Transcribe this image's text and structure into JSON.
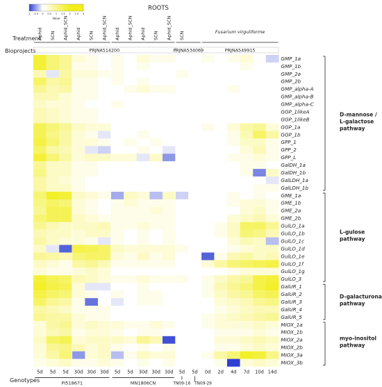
{
  "chart_data": {
    "type": "heatmap",
    "title": "ROOTS",
    "colorbar": {
      "label": "Value",
      "ticks": [
        "-1",
        "-0.5",
        "0",
        "0.5",
        "1",
        "1.5",
        "2",
        "2.5",
        "3"
      ],
      "min": -1,
      "max": 3,
      "low_color": "#2e3fd1",
      "mid_color": "#ffffff",
      "high_color": "#f2ee1a"
    },
    "row_header": {
      "treatment": "Treatment",
      "bioprojects": "Bioprojects",
      "genotypes": "Genotypes"
    },
    "treatments": [
      "Aphid",
      "SCN",
      "Aphid_SCN",
      "Aphid",
      "SCN",
      "Aphid_SCN",
      "Aphid",
      "Aphid_SCN",
      "Aphid",
      "SCN",
      "Aphid_SCN",
      "SCN",
      "Fusarium virguliforme"
    ],
    "bioprojects": [
      "PRJNA514200",
      "PRJNA534069",
      "PRJNA549915"
    ],
    "timepoints": [
      "5d",
      "5d",
      "5d",
      "30d",
      "30d",
      "30d",
      "5d",
      "5d",
      "30d",
      "30d",
      "30d",
      "5d",
      "5d",
      "0d",
      "2d",
      "4d",
      "7d",
      "10d",
      "14d"
    ],
    "genotypes": [
      "PI518671",
      "MN1806CN",
      "TN09-16",
      "TN09-29"
    ],
    "rows": [
      "GMP_1a",
      "GMP_1b",
      "GMP_2a",
      "GMP_2b",
      "GMP_alpha-A",
      "GMP_alpha-B",
      "GMP_alpha-C",
      "GGP_1likeA",
      "GGP_1likeB",
      "GGP_1a",
      "GGP_1b",
      "GPP_1",
      "GPP_2",
      "GPP_L",
      "GalDH_1a",
      "GalDH_1b",
      "GalLDH_1a",
      "GalLDH_1b",
      "GME_1a",
      "GME_1b",
      "GME_2a",
      "GME_2b",
      "GulLO_1a",
      "GulLO_1b",
      "GulLO_1c",
      "GulLO_1d",
      "GulLO_1e",
      "GulLO_1f",
      "GulLO_1g",
      "GulLO_3",
      "GalUR_1",
      "GalUR_2",
      "GalUR_3",
      "GalUR_4",
      "GalUR_5",
      "MIOX_1a",
      "MIOX_1b",
      "MIOX_2a",
      "MIOX_2b",
      "MIOX_3a",
      "MIOX_3b"
    ],
    "pathways": [
      "D-mannose /\nL-galactose\npathway",
      "L-gulose\npathway",
      "D-galacturonate\npathway",
      "myo-inositol\npathway"
    ],
    "values": [
      [
        1.2,
        0.8,
        0.6,
        0.2,
        0.1,
        0.0,
        0.1,
        0.0,
        0.2,
        0.1,
        0.1,
        0.0,
        0.0,
        0.1,
        0.0,
        0.1,
        0.2,
        0.0,
        -0.2
      ],
      [
        1.2,
        0.8,
        0.6,
        0.1,
        0.1,
        0.0,
        0.1,
        0.0,
        0.1,
        0.0,
        0.0,
        0.0,
        0.0,
        0.0,
        0.0,
        0.0,
        0.1,
        0.0,
        0.0
      ],
      [
        0.4,
        -0.1,
        0.5,
        0.2,
        0.2,
        0.1,
        0.1,
        0.0,
        0.0,
        0.0,
        0.0,
        0.1,
        0.0,
        0.0,
        0.0,
        0.0,
        0.0,
        0.0,
        0.0
      ],
      [
        0.9,
        0.5,
        0.6,
        0.1,
        0.1,
        0.0,
        0.1,
        0.0,
        0.1,
        0.0,
        0.0,
        0.0,
        0.0,
        0.0,
        0.0,
        0.0,
        0.0,
        0.0,
        0.0
      ],
      [
        0.6,
        0.4,
        0.5,
        0.1,
        0.1,
        0.0,
        0.0,
        0.1,
        0.2,
        0.1,
        0.1,
        0.0,
        0.0,
        0.0,
        0.0,
        0.1,
        0.0,
        0.0,
        0.0
      ],
      [
        0.4,
        0.4,
        0.2,
        0.1,
        0.1,
        0.0,
        0.0,
        0.0,
        0.0,
        0.0,
        0.0,
        0.0,
        0.0,
        0.0,
        0.0,
        0.0,
        0.0,
        0.0,
        0.0
      ],
      [
        0.3,
        0.2,
        0.2,
        0.1,
        0.0,
        0.0,
        0.1,
        0.0,
        0.0,
        0.0,
        0.0,
        0.0,
        0.0,
        0.0,
        0.0,
        0.0,
        0.0,
        0.0,
        0.0
      ],
      [
        0.4,
        0.3,
        0.2,
        0.1,
        0.1,
        0.0,
        0.0,
        0.0,
        0.0,
        0.0,
        0.0,
        0.0,
        0.0,
        0.0,
        0.0,
        0.0,
        0.0,
        0.0,
        0.0
      ],
      [
        0.4,
        0.3,
        0.2,
        0.1,
        0.1,
        0.0,
        0.0,
        0.0,
        0.0,
        0.0,
        0.0,
        0.0,
        0.0,
        0.0,
        0.0,
        0.0,
        0.0,
        0.0,
        0.0
      ],
      [
        1.0,
        0.8,
        0.6,
        0.3,
        0.2,
        0.2,
        0.0,
        0.0,
        0.0,
        0.0,
        0.0,
        0.0,
        0.0,
        0.1,
        0.0,
        0.2,
        0.5,
        0.6,
        0.2
      ],
      [
        1.0,
        0.7,
        0.5,
        0.2,
        0.1,
        -0.1,
        0.0,
        0.0,
        0.1,
        0.0,
        0.0,
        0.0,
        0.0,
        0.0,
        0.0,
        0.1,
        0.4,
        0.9,
        0.5
      ],
      [
        1.1,
        0.8,
        0.5,
        0.2,
        0.2,
        0.1,
        0.0,
        0.1,
        0.0,
        0.1,
        0.0,
        0.0,
        0.0,
        0.0,
        0.0,
        0.1,
        0.3,
        0.3,
        0.1
      ],
      [
        0.9,
        0.5,
        0.4,
        0.2,
        -0.1,
        -0.2,
        0.0,
        0.0,
        0.1,
        0.0,
        -0.1,
        0.0,
        0.0,
        0.0,
        0.0,
        0.0,
        0.2,
        0.4,
        0.1
      ],
      [
        1.2,
        0.8,
        0.5,
        0.2,
        0.3,
        0.3,
        0.2,
        0.2,
        -0.1,
        0.3,
        -0.5,
        0.0,
        0.0,
        0.0,
        0.0,
        0.1,
        0.1,
        0.2,
        0.1
      ],
      [
        0.6,
        0.3,
        0.3,
        0.1,
        0.1,
        0.0,
        0.0,
        0.0,
        0.0,
        0.0,
        0.0,
        0.0,
        0.0,
        0.0,
        0.0,
        0.0,
        0.1,
        0.1,
        0.0
      ],
      [
        0.7,
        0.3,
        0.3,
        0.1,
        0.1,
        0.0,
        0.0,
        0.0,
        0.0,
        0.0,
        0.0,
        0.0,
        0.0,
        0.0,
        0.0,
        0.0,
        0.1,
        -0.6,
        0.3
      ],
      [
        0.5,
        0.3,
        0.2,
        0.1,
        0.0,
        0.0,
        0.0,
        0.0,
        0.0,
        0.0,
        0.0,
        0.0,
        0.0,
        0.0,
        0.0,
        0.0,
        0.0,
        0.0,
        -0.1
      ],
      [
        0.5,
        0.3,
        0.3,
        0.1,
        0.0,
        0.0,
        0.0,
        0.0,
        0.0,
        0.0,
        0.0,
        0.0,
        0.0,
        0.0,
        0.0,
        0.0,
        0.0,
        0.1,
        0.1
      ],
      [
        0.8,
        1.3,
        1.2,
        0.3,
        0.2,
        0.1,
        -0.4,
        0.3,
        0.2,
        -0.3,
        0.3,
        -0.2,
        0.0,
        0.0,
        0.0,
        0.1,
        0.0,
        0.1,
        0.0
      ],
      [
        0.7,
        0.9,
        0.8,
        0.2,
        0.1,
        0.0,
        0.1,
        0.2,
        0.1,
        0.1,
        0.1,
        0.0,
        0.0,
        0.0,
        0.0,
        0.1,
        0.2,
        0.2,
        0.1
      ],
      [
        0.6,
        1.0,
        1.0,
        0.2,
        0.1,
        0.0,
        0.1,
        0.1,
        0.1,
        0.2,
        0.1,
        0.0,
        0.0,
        0.0,
        0.0,
        0.0,
        0.2,
        0.3,
        0.1
      ],
      [
        0.8,
        1.0,
        1.0,
        0.3,
        0.2,
        0.1,
        0.1,
        0.1,
        0.1,
        0.1,
        0.1,
        0.0,
        0.0,
        0.0,
        0.0,
        0.2,
        0.3,
        0.4,
        0.2
      ],
      [
        0.6,
        0.4,
        0.3,
        0.3,
        0.3,
        0.4,
        0.1,
        0.1,
        0.2,
        0.1,
        0.1,
        0.0,
        0.0,
        0.0,
        0.1,
        0.3,
        0.9,
        0.9,
        0.6
      ],
      [
        0.4,
        0.3,
        0.3,
        0.2,
        0.3,
        0.3,
        0.1,
        0.0,
        0.1,
        0.0,
        0.1,
        0.0,
        0.0,
        0.0,
        0.1,
        0.3,
        0.8,
        0.7,
        0.4
      ],
      [
        0.5,
        0.3,
        0.2,
        0.2,
        0.1,
        -0.1,
        0.1,
        0.0,
        0.1,
        0.0,
        0.1,
        0.0,
        0.0,
        0.0,
        0.0,
        0.2,
        0.4,
        0.3,
        -0.3
      ],
      [
        0.3,
        -0.1,
        -0.8,
        1.1,
        1.0,
        0.9,
        0.3,
        0.2,
        0.2,
        0.2,
        0.2,
        0.1,
        0.0,
        0.0,
        0.0,
        0.1,
        0.2,
        0.3,
        0.3
      ],
      [
        0.6,
        0.5,
        0.4,
        0.8,
        0.9,
        0.9,
        0.2,
        0.1,
        0.3,
        0.1,
        0.2,
        0.0,
        0.0,
        -0.8,
        0.1,
        0.4,
        0.5,
        0.3,
        0.4
      ],
      [
        0.3,
        0.2,
        0.1,
        0.5,
        0.6,
        0.4,
        0.1,
        0.1,
        0.1,
        0.1,
        0.1,
        0.0,
        0.0,
        0.2,
        0.5,
        0.8,
        0.9,
        1.0,
        1.1
      ],
      [
        0.2,
        0.1,
        0.1,
        0.2,
        0.3,
        0.2,
        0.0,
        0.0,
        0.0,
        0.0,
        0.0,
        0.0,
        0.0,
        0.0,
        0.0,
        0.1,
        0.2,
        0.2,
        0.2
      ],
      [
        1.2,
        1.0,
        0.9,
        0.4,
        0.3,
        0.2,
        0.1,
        0.1,
        0.2,
        0.1,
        0.1,
        0.1,
        0.0,
        0.1,
        0.3,
        0.5,
        0.6,
        1.1,
        1.2
      ],
      [
        1.3,
        1.1,
        1.0,
        0.2,
        -0.1,
        -0.1,
        0.0,
        0.0,
        0.1,
        0.0,
        0.0,
        0.0,
        0.0,
        0.1,
        0.4,
        0.6,
        0.8,
        1.1,
        1.3
      ],
      [
        1.1,
        0.9,
        0.8,
        0.2,
        0.1,
        0.0,
        0.1,
        0.0,
        0.1,
        0.1,
        0.0,
        0.0,
        0.0,
        0.1,
        0.3,
        0.5,
        0.6,
        0.9,
        1.0
      ],
      [
        0.9,
        0.6,
        0.5,
        0.1,
        -0.7,
        0.0,
        -0.1,
        0.0,
        0.1,
        0.1,
        0.0,
        0.0,
        0.0,
        0.0,
        0.2,
        0.3,
        0.4,
        0.6,
        0.7
      ],
      [
        0.5,
        0.4,
        0.3,
        0.1,
        0.1,
        0.1,
        0.0,
        0.0,
        0.0,
        0.0,
        0.0,
        0.0,
        0.0,
        0.0,
        0.1,
        0.2,
        0.3,
        0.4,
        0.4
      ],
      [
        0.6,
        0.5,
        0.5,
        0.2,
        0.1,
        0.1,
        0.0,
        0.0,
        0.0,
        0.0,
        0.0,
        0.0,
        0.0,
        0.1,
        0.2,
        0.3,
        0.4,
        0.5,
        0.6
      ],
      [
        0.2,
        0.5,
        0.6,
        0.2,
        0.3,
        0.2,
        0.2,
        0.1,
        0.1,
        0.2,
        0.1,
        0.0,
        0.0,
        0.1,
        0.2,
        0.2,
        0.2,
        0.3,
        0.2
      ],
      [
        0.2,
        0.4,
        0.5,
        0.1,
        0.2,
        0.2,
        0.1,
        0.0,
        0.1,
        0.1,
        0.0,
        0.0,
        0.0,
        0.0,
        0.1,
        0.1,
        0.1,
        0.2,
        0.1
      ],
      [
        0.3,
        0.9,
        1.0,
        0.2,
        0.3,
        0.3,
        0.3,
        0.2,
        0.6,
        0.4,
        -0.9,
        0.0,
        0.0,
        0.0,
        0.2,
        0.2,
        0.3,
        0.4,
        0.3
      ],
      [
        0.2,
        0.6,
        0.7,
        0.4,
        0.2,
        0.3,
        0.1,
        0.0,
        0.1,
        0.0,
        0.1,
        0.0,
        0.0,
        0.0,
        0.1,
        0.1,
        0.2,
        0.3,
        0.2
      ],
      [
        0.2,
        0.5,
        0.8,
        -0.5,
        0.2,
        0.3,
        -0.3,
        0.1,
        0.3,
        0.2,
        0.2,
        0.0,
        0.0,
        0.1,
        0.5,
        0.8,
        1.3,
        1.2,
        0.7
      ],
      [
        0.1,
        0.2,
        0.3,
        0.1,
        0.1,
        0.2,
        0.1,
        0.0,
        0.1,
        0.0,
        0.1,
        0.0,
        0.0,
        0.0,
        0.1,
        -1.0,
        0.2,
        0.3,
        0.2
      ]
    ]
  }
}
